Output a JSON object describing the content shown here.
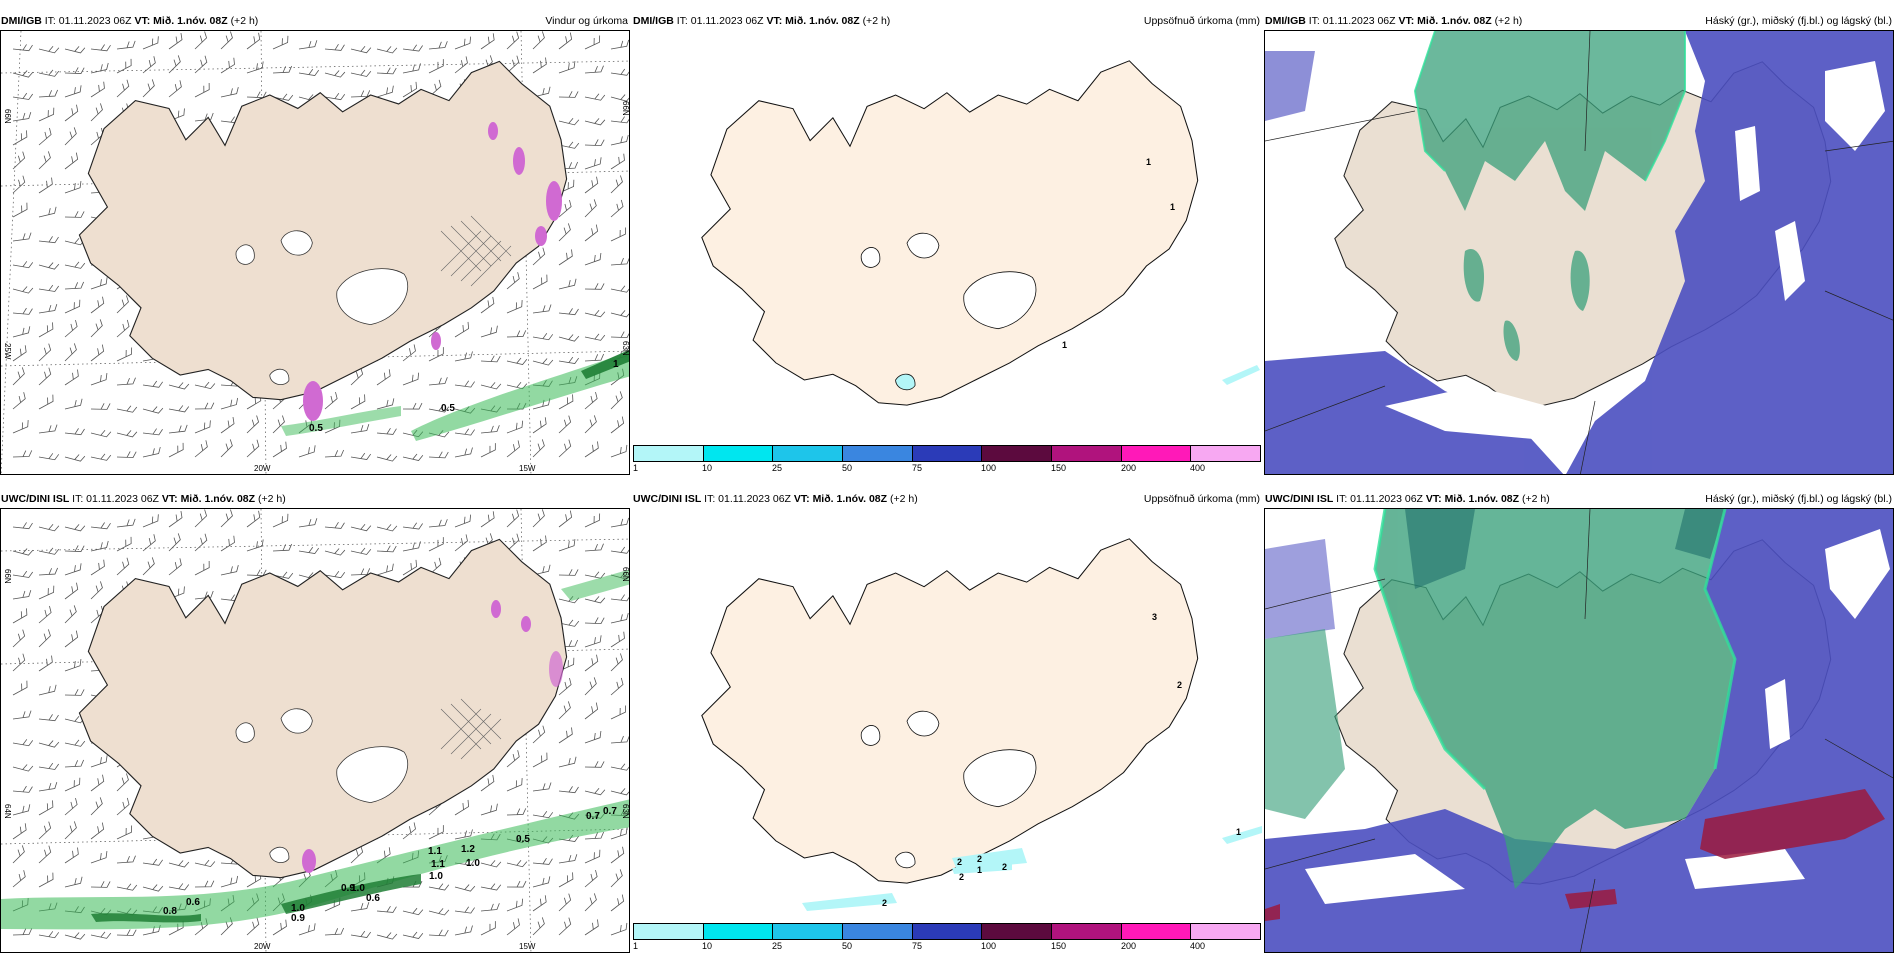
{
  "panels": [
    {
      "source": "DMI/IGB",
      "it": "IT: 01.11.2023 06Z",
      "vt_label": "VT:",
      "vt_value": "Mið. 1.nóv. 08Z",
      "lead": "(+2 h)",
      "title": "Vindur og úrkoma"
    },
    {
      "source": "DMI/IGB",
      "it": "IT: 01.11.2023 06Z",
      "vt_label": "VT:",
      "vt_value": "Mið. 1.nóv. 08Z",
      "lead": "(+2 h)",
      "title": "Uppsöfnuð úrkoma (mm)"
    },
    {
      "source": "DMI/IGB",
      "it": "IT: 01.11.2023 06Z",
      "vt_label": "VT:",
      "vt_value": "Mið. 1.nóv. 08Z",
      "lead": "(+2 h)",
      "title": "Háský (gr.), miðský (fj.bl.) og lágský (bl.)"
    },
    {
      "source": "UWC/DINI ISL",
      "it": "IT: 01.11.2023 06Z",
      "vt_label": "VT:",
      "vt_value": "Mið. 1.nóv. 08Z",
      "lead": "(+2 h)",
      "title": ""
    },
    {
      "source": "UWC/DINI ISL",
      "it": "IT: 01.11.2023 06Z",
      "vt_label": "VT:",
      "vt_value": "Mið. 1.nóv. 08Z",
      "lead": "(+2 h)",
      "title": "Uppsöfnuð úrkoma (mm)"
    },
    {
      "source": "UWC/DINI ISL",
      "it": "IT: 01.11.2023 06Z",
      "vt_label": "VT:",
      "vt_value": "Mið. 1.nóv. 08Z",
      "lead": "(+2 h)",
      "title": "Háský (gr.), miðský (fj.bl.) og lágský (bl.)"
    }
  ],
  "axes": {
    "lon_20": "20W",
    "lon_15": "15W",
    "lat_66": "66N",
    "lat_64": "64N",
    "lat_63": "63N",
    "lat_25": "25W"
  },
  "legend": {
    "ticks": [
      "1",
      "10",
      "25",
      "50",
      "75",
      "100",
      "150",
      "200",
      "400"
    ],
    "colors": [
      "#b3f6f8",
      "#00e6ef",
      "#1ec5ea",
      "#3a86e0",
      "#2b3bb8",
      "#5c0a3e",
      "#b0137d",
      "#ff19b8",
      "#f7a8f2"
    ]
  },
  "precip_labels_top": [
    "0.5",
    "0.5",
    "1"
  ],
  "precip_labels_bottom": [
    "0.5",
    "0.7",
    "0.9",
    "0.7",
    "1.1",
    "1.2",
    "1.0",
    "1.1",
    "1.0",
    "1.0",
    "0.6",
    "0.8",
    "0.6",
    "0.9",
    "1.0"
  ],
  "accum_labels_top": [
    "1",
    "1",
    "1"
  ],
  "accum_labels_bottom": [
    "3",
    "2",
    "2",
    "2",
    "1",
    "2",
    "2",
    "1",
    "2"
  ],
  "colors": {
    "land": "#fdf0e2",
    "land_wind": "#eedfd0",
    "cloud_high": "#3aa07b",
    "cloud_mid": "#33a869",
    "cloud_low": "#4b4fc0",
    "cloud_red": "#9b1a3d",
    "precip_green": "#39b956",
    "precip_pink": "#d06ad2"
  }
}
